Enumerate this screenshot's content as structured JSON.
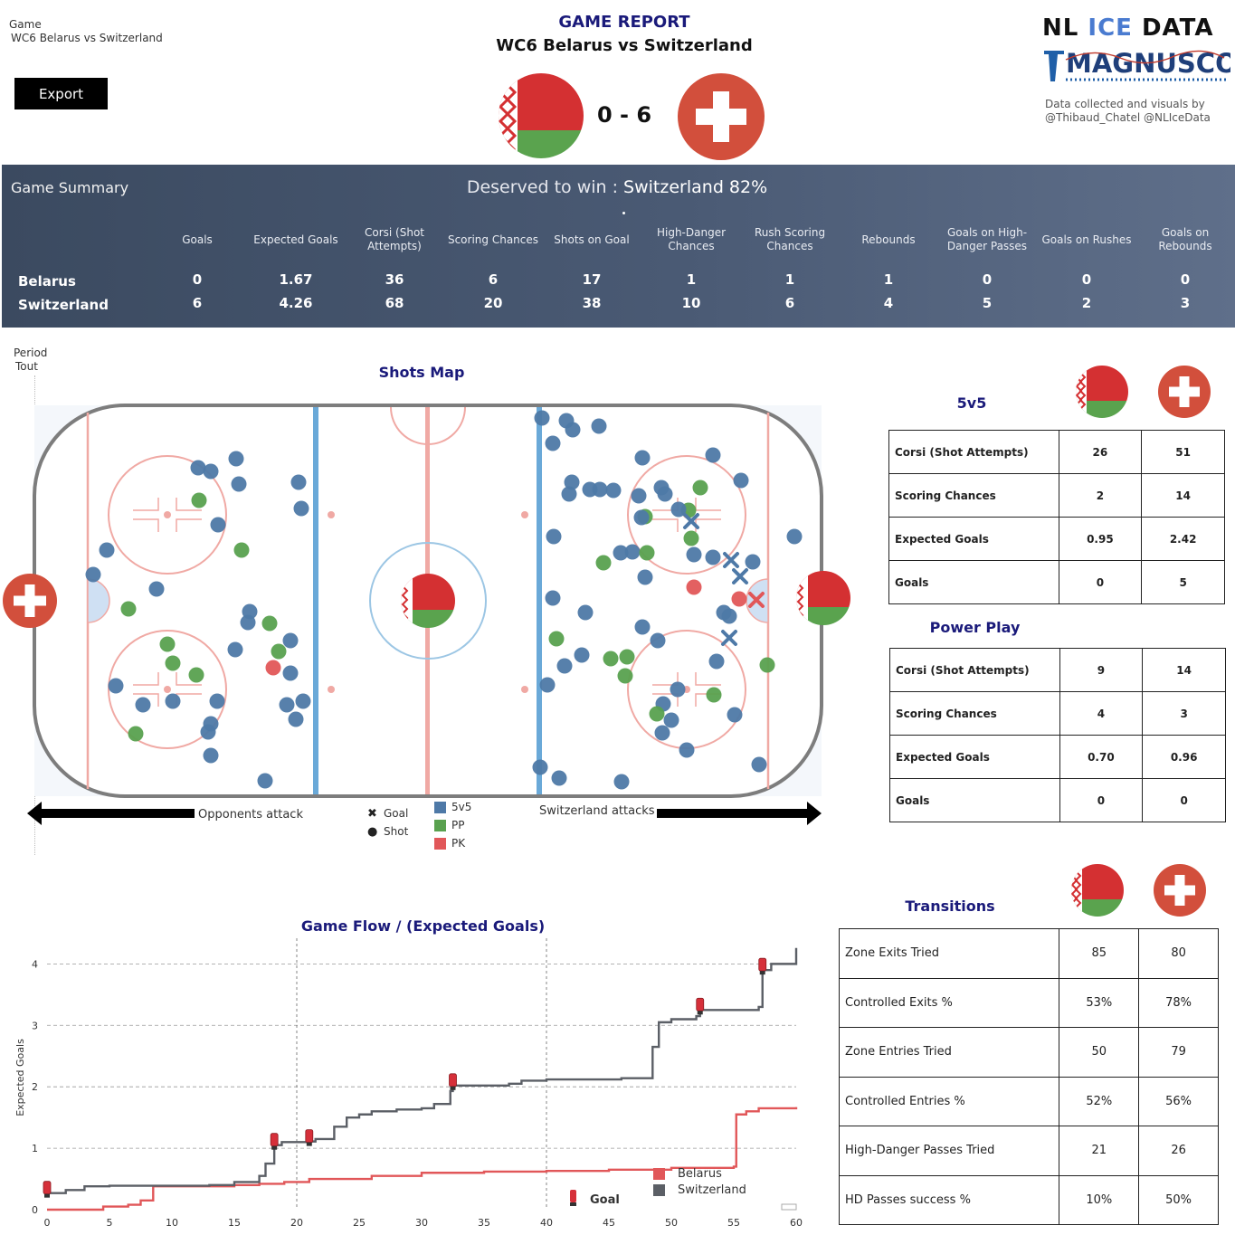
{
  "header": {
    "game_label": "Game",
    "game_value": "WC6 Belarus vs Switzerland",
    "export_label": "Export",
    "report_title": "GAME REPORT",
    "report_subtitle": "WC6 Belarus vs Switzerland",
    "score": "0 - 6",
    "logo_nl": "NL",
    "logo_ice": "ICE",
    "logo_data": "DATA",
    "logo_magnus": "MAGNUSCORSI",
    "credits_line1": "Data collected and visuals by",
    "credits_line2": "@Thibaud_Chatel @NLIceData"
  },
  "colors": {
    "belarus_red": "#d43032",
    "belarus_green": "#5aa34e",
    "swiss_red": "#d24f3c",
    "navy_title": "#1a1a7a",
    "ev_blue": "#4e79a7",
    "pp_green": "#59a14f",
    "pk_red": "#e15759"
  },
  "summary": {
    "title": "Game Summary",
    "deserved_prefix": "Deserved to win :",
    "deserved_value": "Switzerland 82%",
    "columns": [
      "Goals",
      "Expected Goals",
      "Corsi (Shot Attempts)",
      "Scoring Chances",
      "Shots on Goal",
      "High-Danger Chances",
      "Rush Scoring Chances",
      "Rebounds",
      "Goals on High-Danger Passes",
      "Goals on Rushes",
      "Goals on Rebounds"
    ],
    "rows": [
      {
        "team": "Belarus",
        "values": [
          "0",
          "1.67",
          "36",
          "6",
          "17",
          "1",
          "1",
          "1",
          "0",
          "0",
          "0"
        ]
      },
      {
        "team": "Switzerland",
        "values": [
          "6",
          "4.26",
          "68",
          "20",
          "38",
          "10",
          "6",
          "4",
          "5",
          "2",
          "3"
        ]
      }
    ]
  },
  "shots_map": {
    "period_label": "Period",
    "period_value": "Tout",
    "title": "Shots Map",
    "left_arrow_label": "Opponents attack",
    "right_arrow_label": "Switzerland attacks",
    "legend_shape": [
      {
        "icon": "x-icon",
        "label": "Goal"
      },
      {
        "icon": "dot-icon",
        "label": "Shot"
      }
    ],
    "legend_strength": [
      {
        "color": "#4e79a7",
        "label": "5v5"
      },
      {
        "color": "#59a14f",
        "label": "PP"
      },
      {
        "color": "#e15759",
        "label": "PK"
      }
    ]
  },
  "five_v_five": {
    "title": "5v5",
    "rows": [
      {
        "label": "Corsi (Shot Attempts)",
        "bel": "26",
        "sui": "51"
      },
      {
        "label": "Scoring Chances",
        "bel": "2",
        "sui": "14"
      },
      {
        "label": "Expected Goals",
        "bel": "0.95",
        "sui": "2.42"
      },
      {
        "label": "Goals",
        "bel": "0",
        "sui": "5"
      }
    ]
  },
  "power_play": {
    "title": "Power Play",
    "rows": [
      {
        "label": "Corsi (Shot Attempts)",
        "bel": "9",
        "sui": "14"
      },
      {
        "label": "Scoring Chances",
        "bel": "4",
        "sui": "3"
      },
      {
        "label": "Expected Goals",
        "bel": "0.70",
        "sui": "0.96"
      },
      {
        "label": "Goals",
        "bel": "0",
        "sui": "0"
      }
    ]
  },
  "transitions": {
    "title": "Transitions",
    "rows": [
      {
        "label": "Zone Exits Tried",
        "bel": "85",
        "sui": "80"
      },
      {
        "label": "Controlled Exits %",
        "bel": "53%",
        "sui": "78%"
      },
      {
        "label": "Zone Entries Tried",
        "bel": "50",
        "sui": "79"
      },
      {
        "label": "Controlled Entries %",
        "bel": "52%",
        "sui": "56%"
      },
      {
        "label": "High-Danger Passes Tried",
        "bel": "21",
        "sui": "26"
      },
      {
        "label": "HD Passes success %",
        "bel": "10%",
        "sui": "50%"
      }
    ]
  },
  "game_flow": {
    "title": "Game Flow  /  (Expected Goals)",
    "goal_legend": "Goal",
    "legend": [
      {
        "name": "Belarus",
        "color": "#e15759"
      },
      {
        "name": "Switzerland",
        "color": "#5b5f66"
      }
    ]
  },
  "chart_data": {
    "type": "line",
    "title": "Game Flow  /  (Expected Goals)",
    "xlabel": "",
    "ylabel": "Expected Goals",
    "xlim": [
      0,
      60
    ],
    "ylim": [
      0,
      4.3
    ],
    "x_ticks": [
      0,
      5,
      10,
      15,
      20,
      25,
      30,
      35,
      40,
      45,
      50,
      55,
      60
    ],
    "y_ticks": [
      0,
      1,
      2,
      3,
      4
    ],
    "period_lines": [
      20,
      40
    ],
    "step": true,
    "series": [
      {
        "name": "Belarus",
        "color": "#e15759",
        "points": [
          [
            0,
            0
          ],
          [
            4.5,
            0.05
          ],
          [
            6.5,
            0.08
          ],
          [
            7.5,
            0.15
          ],
          [
            8.5,
            0.38
          ],
          [
            15,
            0.4
          ],
          [
            17,
            0.42
          ],
          [
            19,
            0.45
          ],
          [
            21,
            0.5
          ],
          [
            26,
            0.55
          ],
          [
            30,
            0.6
          ],
          [
            35,
            0.62
          ],
          [
            40,
            0.63
          ],
          [
            45,
            0.65
          ],
          [
            50,
            0.68
          ],
          [
            55,
            0.7
          ],
          [
            55.2,
            1.55
          ],
          [
            56,
            1.6
          ],
          [
            57,
            1.65
          ],
          [
            60,
            1.67
          ]
        ]
      },
      {
        "name": "Switzerland",
        "color": "#5b5f66",
        "points": [
          [
            0,
            0.27
          ],
          [
            1.5,
            0.32
          ],
          [
            3,
            0.38
          ],
          [
            5,
            0.39
          ],
          [
            10,
            0.39
          ],
          [
            13,
            0.4
          ],
          [
            15,
            0.45
          ],
          [
            17,
            0.55
          ],
          [
            17.5,
            0.75
          ],
          [
            18.2,
            1.05
          ],
          [
            18.8,
            1.1
          ],
          [
            21,
            1.11
          ],
          [
            21.5,
            1.15
          ],
          [
            23,
            1.35
          ],
          [
            24,
            1.5
          ],
          [
            25,
            1.55
          ],
          [
            26,
            1.6
          ],
          [
            28,
            1.63
          ],
          [
            30,
            1.65
          ],
          [
            31,
            1.72
          ],
          [
            32.3,
            1.93
          ],
          [
            32.5,
            2.02
          ],
          [
            37,
            2.05
          ],
          [
            38,
            2.1
          ],
          [
            40,
            2.12
          ],
          [
            46,
            2.14
          ],
          [
            48.5,
            2.65
          ],
          [
            49,
            3.05
          ],
          [
            50,
            3.1
          ],
          [
            52,
            3.15
          ],
          [
            52.3,
            3.25
          ],
          [
            57,
            3.3
          ],
          [
            57.3,
            3.9
          ],
          [
            58,
            4.0
          ],
          [
            60,
            4.26
          ]
        ]
      }
    ],
    "goals": [
      [
        0,
        0.27
      ],
      [
        18.2,
        1.05
      ],
      [
        21,
        1.11
      ],
      [
        32.5,
        2.02
      ],
      [
        52.3,
        3.25
      ],
      [
        57.3,
        3.9
      ]
    ]
  }
}
